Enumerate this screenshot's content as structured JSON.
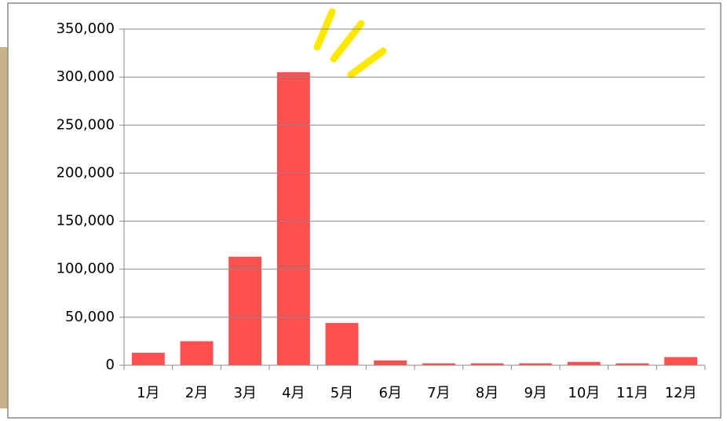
{
  "chart_data": {
    "type": "bar",
    "categories": [
      "1月",
      "2月",
      "3月",
      "4月",
      "5月",
      "6月",
      "7月",
      "8月",
      "9月",
      "10月",
      "11月",
      "12月"
    ],
    "values": [
      13000,
      25000,
      113000,
      305000,
      44000,
      5000,
      2000,
      2000,
      2000,
      3500,
      2000,
      8500
    ],
    "color": "#ff5050",
    "ylim": [
      0,
      350000
    ],
    "yticks": [
      0,
      {
        "value": 50000,
        "label": "50,000"
      },
      {
        "value": 100000,
        "label": "100,000"
      },
      {
        "value": 150000,
        "label": "150,000"
      },
      {
        "value": 200000,
        "label": "200,000"
      },
      {
        "value": 250000,
        "label": "250,000"
      },
      {
        "value": 300000,
        "label": "300,000"
      },
      {
        "value": 350000,
        "label": "350,000"
      }
    ],
    "grid": true
  }
}
